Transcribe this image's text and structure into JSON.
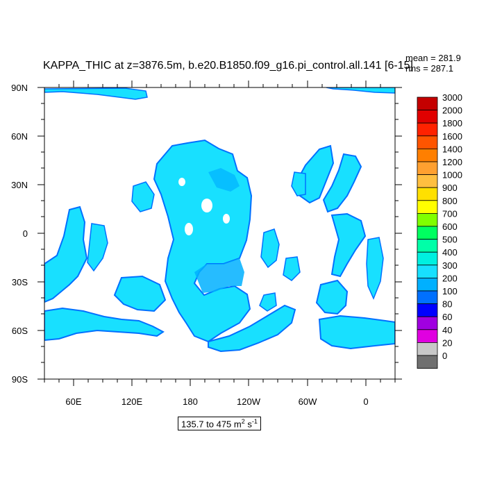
{
  "title": "KAPPA_THIC at z=3876.5m, b.e20.B1850.f09_g16.pi_control.all.141 [6-15]",
  "stats": {
    "mean": "mean = 281.9",
    "rms": "rms = 287.1"
  },
  "range_label": {
    "text": "135.7 to 475 m",
    "unit_sup1": "2",
    "mid": " s",
    "unit_sup2": "-1"
  },
  "map": {
    "lat_labels": [
      "90N",
      "60N",
      "30N",
      "0",
      "30S",
      "60S",
      "90S"
    ],
    "lon_labels": [
      "60E",
      "120E",
      "180",
      "120W",
      "60W",
      "0"
    ]
  },
  "colorbar": {
    "levels": [
      "3000",
      "2000",
      "1800",
      "1600",
      "1400",
      "1200",
      "1000",
      "900",
      "800",
      "700",
      "600",
      "500",
      "400",
      "300",
      "200",
      "100",
      "80",
      "60",
      "40",
      "20",
      "0"
    ],
    "colors": [
      "#c40000",
      "#e00000",
      "#ff2200",
      "#ff5500",
      "#ff7f00",
      "#ffa030",
      "#ffbf40",
      "#ffe000",
      "#ffff00",
      "#80ff00",
      "#00ff60",
      "#00ffa8",
      "#00f0e0",
      "#18e0ff",
      "#00b0ff",
      "#0070ff",
      "#0000ff",
      "#a000e0",
      "#e000e0",
      "#c8c8c8",
      "#707070"
    ]
  },
  "colors": {
    "ocean_main": "#18e0ff",
    "ocean_mid": "#00b0ff",
    "ocean_edge": "#0070ff",
    "land": "#ffffff"
  }
}
